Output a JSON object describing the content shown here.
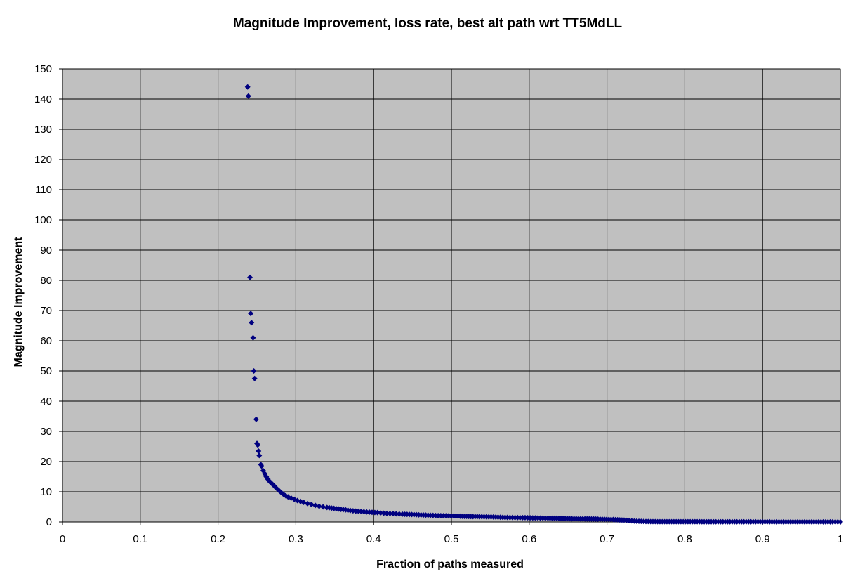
{
  "chart_data": {
    "type": "scatter",
    "title": "Magnitude Improvement, loss rate, best alt path wrt TT5MdLL",
    "xlabel": "Fraction of paths measured",
    "ylabel": "Magnitude Improvement",
    "xlim": [
      0,
      1
    ],
    "ylim": [
      0,
      150
    ],
    "x_ticks": [
      "0",
      "0.1",
      "0.2",
      "0.3",
      "0.4",
      "0.5",
      "0.6",
      "0.7",
      "0.8",
      "0.9",
      "1"
    ],
    "y_ticks": [
      "0",
      "10",
      "20",
      "30",
      "40",
      "50",
      "60",
      "70",
      "80",
      "90",
      "100",
      "110",
      "120",
      "130",
      "140",
      "150"
    ],
    "grid": true,
    "legend": "none",
    "plot_background": "#C0C0C0",
    "marker_color": "#000080",
    "series": [
      {
        "x": [
          0.238,
          0.239,
          0.241,
          0.242,
          0.243,
          0.245,
          0.246,
          0.247,
          0.249,
          0.25,
          0.251,
          0.252,
          0.253,
          0.255,
          0.256,
          0.258,
          0.26,
          0.262,
          0.264,
          0.266,
          0.268,
          0.27,
          0.272,
          0.275,
          0.278,
          0.281,
          0.284,
          0.287,
          0.29,
          0.294,
          0.298,
          0.302,
          0.306,
          0.31,
          0.315,
          0.32,
          0.325,
          0.33,
          0.335,
          0.34,
          0.346,
          0.352,
          0.358,
          0.364,
          0.37,
          0.377,
          0.384,
          0.391,
          0.398,
          0.405,
          0.413,
          0.421,
          0.429,
          0.437,
          0.446,
          0.455,
          0.464,
          0.473,
          0.483,
          0.493,
          0.503,
          0.514,
          0.525,
          0.536,
          0.548,
          0.56,
          0.572,
          0.585,
          0.598,
          0.611,
          0.624,
          0.638,
          0.652,
          0.666,
          0.68,
          0.694,
          0.708,
          0.722,
          0.735,
          0.75,
          0.765,
          0.78,
          0.795,
          0.81,
          0.825,
          0.84,
          0.855,
          0.87,
          0.885,
          0.9,
          0.915,
          0.93,
          0.945,
          0.96,
          0.975,
          0.99,
          1.0
        ],
        "y": [
          144,
          141,
          81,
          69,
          66,
          61,
          50,
          47.5,
          34,
          26,
          25.5,
          23.5,
          22,
          19,
          18.5,
          17,
          16,
          15,
          14.2,
          13.5,
          13,
          12.5,
          12,
          11.2,
          10.5,
          9.8,
          9.2,
          8.7,
          8.3,
          7.9,
          7.5,
          7.1,
          6.8,
          6.5,
          6.1,
          5.8,
          5.5,
          5.2,
          5.0,
          4.8,
          4.6,
          4.4,
          4.2,
          4.0,
          3.8,
          3.6,
          3.5,
          3.3,
          3.2,
          3.1,
          2.9,
          2.8,
          2.7,
          2.6,
          2.5,
          2.4,
          2.3,
          2.2,
          2.1,
          2.05,
          2.0,
          1.9,
          1.8,
          1.75,
          1.7,
          1.6,
          1.5,
          1.45,
          1.4,
          1.3,
          1.25,
          1.2,
          1.1,
          1.05,
          1.0,
          0.9,
          0.8,
          0.6,
          0.3,
          0.15,
          0.1,
          0.1,
          0.08,
          0.08,
          0.07,
          0.06,
          0.06,
          0.05,
          0.05,
          0.05,
          0.04,
          0.04,
          0.04,
          0.03,
          0.03,
          0.03,
          0.03
        ]
      }
    ]
  }
}
